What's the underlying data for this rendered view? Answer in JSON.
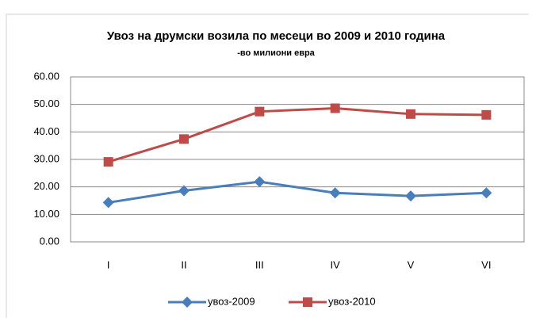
{
  "chart_data": {
    "type": "line",
    "title": "Увоз на друмски возила по месеци во 2009 и 2010 година",
    "subtitle": "-во милиони евра",
    "categories": [
      "I",
      "II",
      "III",
      "IV",
      "V",
      "VI"
    ],
    "series": [
      {
        "name": "увоз-2009",
        "color": "#4a7ebb",
        "marker": "diamond",
        "values": [
          14.3,
          18.6,
          21.9,
          17.8,
          16.7,
          17.8
        ]
      },
      {
        "name": "увоз-2010",
        "color": "#be4b48",
        "marker": "square",
        "values": [
          29.1,
          37.4,
          47.4,
          48.6,
          46.5,
          46.2
        ]
      }
    ],
    "ylim": [
      0,
      60
    ],
    "yticks": [
      {
        "value": 0,
        "label": "0.00"
      },
      {
        "value": 10,
        "label": "10.00"
      },
      {
        "value": 20,
        "label": "20.00"
      },
      {
        "value": 30,
        "label": "30.00"
      },
      {
        "value": 40,
        "label": "40.00"
      },
      {
        "value": 50,
        "label": "50.00"
      },
      {
        "value": 60,
        "label": "60.00"
      }
    ],
    "grid": true,
    "legend": "bottom"
  }
}
